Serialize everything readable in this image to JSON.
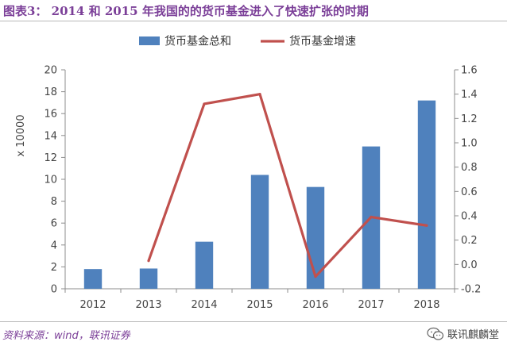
{
  "header": {
    "title": "图表3： 2014 和 2015 年我国的的货币基金进入了快速扩张的时期"
  },
  "footer": {
    "source": "资料来源：wind，联讯证券",
    "brand": "联讯麒麟堂",
    "brand_icon": "wechat-icon"
  },
  "colors": {
    "title": "#7b3f98",
    "bar": "#4f81bd",
    "line": "#c0504d"
  },
  "chart_data": {
    "type": "bar",
    "categories": [
      "2012",
      "2013",
      "2014",
      "2015",
      "2016",
      "2017",
      "2018"
    ],
    "series": [
      {
        "name": "货币基金总和",
        "type": "bar",
        "axis": "left",
        "values": [
          1.8,
          1.85,
          4.3,
          10.4,
          9.3,
          13.0,
          17.2
        ]
      },
      {
        "name": "货币基金增速",
        "type": "line",
        "axis": "right",
        "values": [
          null,
          0.03,
          1.32,
          1.4,
          -0.1,
          0.39,
          0.32
        ]
      }
    ],
    "ylabel": "x 10000",
    "ylim": [
      0,
      20
    ],
    "yticks": [
      "0",
      "2",
      "4",
      "6",
      "8",
      "10",
      "12",
      "14",
      "16",
      "18",
      "20"
    ],
    "y2lim": [
      -0.2,
      1.6
    ],
    "y2ticks": [
      "-0.2",
      "0.0",
      "0.2",
      "0.4",
      "0.6",
      "0.8",
      "1.0",
      "1.2",
      "1.4",
      "1.6"
    ],
    "legend": "top",
    "grid": false
  }
}
